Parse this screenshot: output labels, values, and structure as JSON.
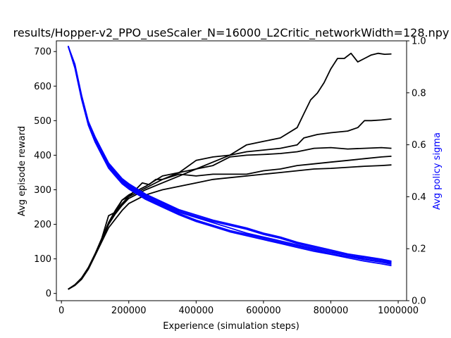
{
  "chart_data": {
    "type": "line",
    "title": "results/Hopper-v2_PPO_useScaler_N=16000_L2Critic_networkWidth=128.npy",
    "xlabel": "Experience (simulation steps)",
    "ylabel": "Avg episode reward",
    "y2label": "Avg policy sigma",
    "xlim": [
      -15000,
      1025000
    ],
    "ylim": [
      -21,
      731
    ],
    "y2lim": [
      0,
      1.0
    ],
    "xticks": [
      0,
      200000,
      400000,
      600000,
      800000,
      1000000
    ],
    "yticks": [
      0,
      100,
      200,
      300,
      400,
      500,
      600,
      700
    ],
    "y2ticks": [
      0.0,
      0.2,
      0.4,
      0.6,
      0.8,
      1.0
    ],
    "grid": false,
    "legend": "none",
    "colors": {
      "reward": "#000000",
      "sigma": "#0000ff"
    },
    "reward_series": [
      {
        "x": [
          20000,
          40000,
          60000,
          80000,
          100000,
          120000,
          140000,
          160000,
          180000,
          200000,
          220000,
          240000,
          260000,
          280000,
          300000,
          350000,
          400000,
          450000,
          500000,
          550000,
          600000,
          650000,
          700000,
          720000,
          740000,
          760000,
          780000,
          800000,
          820000,
          840000,
          860000,
          880000,
          900000,
          920000,
          940000,
          960000,
          980000
        ],
        "y": [
          12,
          25,
          45,
          75,
          115,
          160,
          225,
          235,
          270,
          280,
          300,
          320,
          315,
          330,
          330,
          350,
          385,
          395,
          400,
          430,
          440,
          450,
          480,
          520,
          560,
          580,
          610,
          650,
          680,
          680,
          695,
          670,
          680,
          690,
          695,
          692,
          693
        ]
      },
      {
        "x": [
          20000,
          40000,
          60000,
          80000,
          100000,
          120000,
          140000,
          160000,
          180000,
          200000,
          250000,
          300000,
          350000,
          400000,
          450000,
          500000,
          550000,
          600000,
          650000,
          700000,
          720000,
          760000,
          800000,
          850000,
          880000,
          900000,
          920000,
          950000,
          980000
        ],
        "y": [
          12,
          24,
          42,
          72,
          112,
          155,
          200,
          230,
          255,
          275,
          300,
          320,
          340,
          360,
          380,
          400,
          410,
          415,
          420,
          430,
          450,
          460,
          465,
          470,
          480,
          500,
          500,
          502,
          505
        ]
      },
      {
        "x": [
          20000,
          40000,
          60000,
          80000,
          100000,
          120000,
          140000,
          160000,
          180000,
          200000,
          250000,
          300000,
          350000,
          400000,
          450000,
          500000,
          550000,
          600000,
          650000,
          700000,
          750000,
          800000,
          850000,
          900000,
          950000,
          980000
        ],
        "y": [
          12,
          25,
          44,
          74,
          114,
          158,
          205,
          240,
          270,
          285,
          310,
          340,
          350,
          360,
          370,
          395,
          400,
          402,
          405,
          410,
          420,
          422,
          418,
          420,
          422,
          420
        ]
      },
      {
        "x": [
          20000,
          40000,
          60000,
          80000,
          100000,
          120000,
          140000,
          160000,
          180000,
          200000,
          250000,
          300000,
          350000,
          400000,
          450000,
          500000,
          550000,
          600000,
          650000,
          700000,
          750000,
          800000,
          850000,
          900000,
          950000,
          980000
        ],
        "y": [
          12,
          24,
          43,
          73,
          113,
          156,
          200,
          235,
          260,
          280,
          305,
          330,
          345,
          340,
          345,
          345,
          345,
          355,
          360,
          370,
          375,
          380,
          385,
          390,
          395,
          397
        ]
      },
      {
        "x": [
          20000,
          40000,
          60000,
          80000,
          100000,
          120000,
          140000,
          160000,
          180000,
          200000,
          250000,
          300000,
          350000,
          400000,
          450000,
          500000,
          550000,
          600000,
          650000,
          700000,
          750000,
          800000,
          850000,
          900000,
          950000,
          980000
        ],
        "y": [
          12,
          23,
          41,
          70,
          110,
          150,
          190,
          215,
          240,
          260,
          285,
          300,
          310,
          320,
          330,
          335,
          340,
          345,
          350,
          355,
          360,
          362,
          365,
          368,
          370,
          372
        ]
      }
    ],
    "sigma_series": [
      {
        "x": [
          20000,
          40000,
          60000,
          80000,
          100000,
          120000,
          140000,
          160000,
          180000,
          200000,
          250000,
          300000,
          350000,
          400000,
          450000,
          500000,
          550000,
          600000,
          650000,
          700000,
          750000,
          800000,
          850000,
          900000,
          950000,
          980000
        ],
        "y": [
          0.98,
          0.9,
          0.78,
          0.68,
          0.62,
          0.57,
          0.52,
          0.49,
          0.46,
          0.44,
          0.4,
          0.37,
          0.34,
          0.32,
          0.3,
          0.28,
          0.26,
          0.245,
          0.23,
          0.215,
          0.2,
          0.185,
          0.175,
          0.16,
          0.15,
          0.145
        ]
      },
      {
        "x": [
          20000,
          40000,
          60000,
          80000,
          100000,
          120000,
          140000,
          160000,
          180000,
          200000,
          250000,
          300000,
          350000,
          400000,
          450000,
          500000,
          550000,
          600000,
          650000,
          700000,
          750000,
          800000,
          850000,
          900000,
          950000,
          980000
        ],
        "y": [
          0.98,
          0.905,
          0.785,
          0.685,
          0.625,
          0.575,
          0.525,
          0.495,
          0.465,
          0.445,
          0.405,
          0.375,
          0.345,
          0.325,
          0.305,
          0.29,
          0.275,
          0.255,
          0.24,
          0.22,
          0.205,
          0.19,
          0.175,
          0.165,
          0.155,
          0.148
        ]
      },
      {
        "x": [
          20000,
          40000,
          60000,
          80000,
          100000,
          120000,
          140000,
          160000,
          180000,
          200000,
          250000,
          300000,
          350000,
          400000,
          450000,
          500000,
          550000,
          600000,
          650000,
          700000,
          750000,
          800000,
          850000,
          900000,
          950000,
          980000
        ],
        "y": [
          0.98,
          0.91,
          0.79,
          0.69,
          0.63,
          0.58,
          0.53,
          0.5,
          0.47,
          0.45,
          0.41,
          0.38,
          0.35,
          0.33,
          0.31,
          0.295,
          0.28,
          0.26,
          0.245,
          0.225,
          0.21,
          0.195,
          0.18,
          0.17,
          0.16,
          0.152
        ]
      },
      {
        "x": [
          20000,
          40000,
          60000,
          80000,
          100000,
          120000,
          140000,
          160000,
          180000,
          200000,
          250000,
          300000,
          350000,
          400000,
          450000,
          500000,
          550000,
          600000,
          650000,
          700000,
          750000,
          800000,
          850000,
          900000,
          950000,
          980000
        ],
        "y": [
          0.98,
          0.9,
          0.78,
          0.68,
          0.615,
          0.565,
          0.515,
          0.485,
          0.455,
          0.435,
          0.395,
          0.365,
          0.335,
          0.31,
          0.29,
          0.27,
          0.255,
          0.24,
          0.225,
          0.21,
          0.195,
          0.18,
          0.17,
          0.158,
          0.148,
          0.14
        ]
      },
      {
        "x": [
          20000,
          40000,
          60000,
          80000,
          100000,
          120000,
          140000,
          160000,
          180000,
          200000,
          250000,
          300000,
          350000,
          400000,
          450000,
          500000,
          550000,
          600000,
          650000,
          700000,
          750000,
          800000,
          850000,
          900000,
          950000,
          980000
        ],
        "y": [
          0.98,
          0.895,
          0.775,
          0.675,
          0.61,
          0.56,
          0.51,
          0.48,
          0.45,
          0.43,
          0.39,
          0.36,
          0.33,
          0.305,
          0.285,
          0.265,
          0.25,
          0.235,
          0.22,
          0.205,
          0.19,
          0.178,
          0.165,
          0.152,
          0.142,
          0.135
        ]
      }
    ]
  }
}
